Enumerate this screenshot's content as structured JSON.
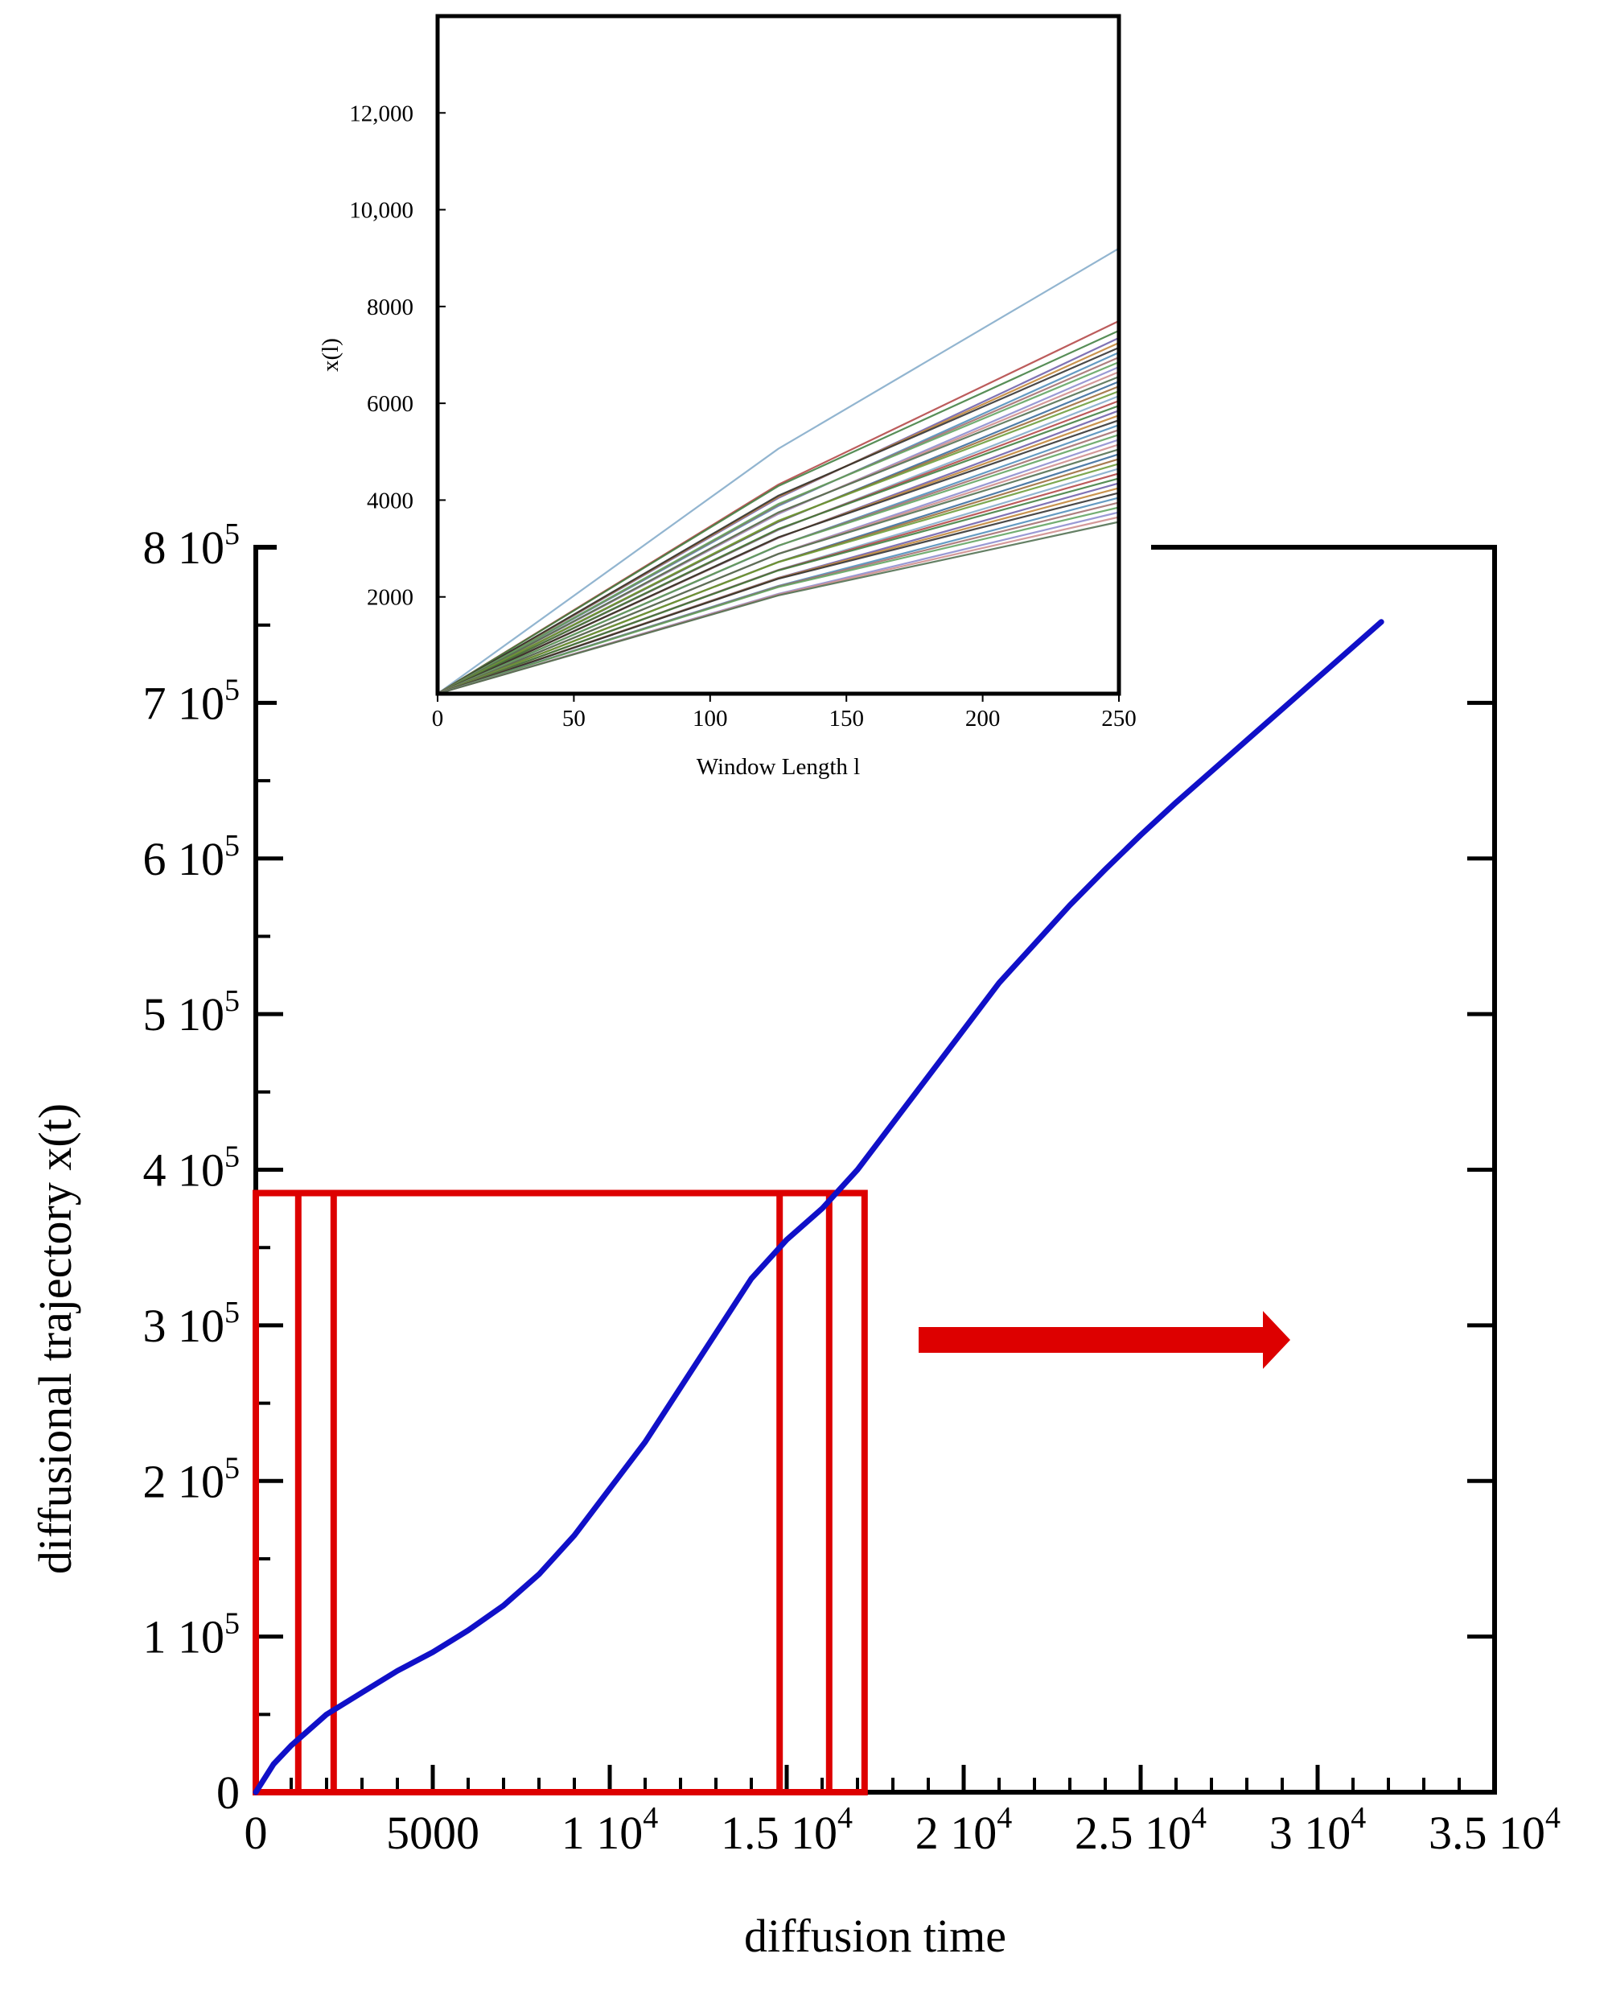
{
  "chart_data": [
    {
      "type": "line",
      "xlabel": "diffusion time",
      "ylabel": "diffusional trajectory x(t)",
      "xlim": [
        0,
        35000
      ],
      "ylim": [
        0,
        800000
      ],
      "grid": false,
      "x_ticks": [
        {
          "value": 0,
          "base": "0",
          "exp": ""
        },
        {
          "value": 5000,
          "base": "5000",
          "exp": ""
        },
        {
          "value": 10000,
          "base": "1 10",
          "exp": "4"
        },
        {
          "value": 15000,
          "base": "1.5 10",
          "exp": "4"
        },
        {
          "value": 20000,
          "base": "2 10",
          "exp": "4"
        },
        {
          "value": 25000,
          "base": "2.5 10",
          "exp": "4"
        },
        {
          "value": 30000,
          "base": "3 10",
          "exp": "4"
        },
        {
          "value": 35000,
          "base": "3.5 10",
          "exp": "4"
        }
      ],
      "y_ticks": [
        {
          "value": 0,
          "base": "0",
          "exp": ""
        },
        {
          "value": 100000,
          "base": "1 10",
          "exp": "5"
        },
        {
          "value": 200000,
          "base": "2 10",
          "exp": "5"
        },
        {
          "value": 300000,
          "base": "3 10",
          "exp": "5"
        },
        {
          "value": 400000,
          "base": "4 10",
          "exp": "5"
        },
        {
          "value": 500000,
          "base": "5 10",
          "exp": "5"
        },
        {
          "value": 600000,
          "base": "6 10",
          "exp": "5"
        },
        {
          "value": 700000,
          "base": "7 10",
          "exp": "5"
        },
        {
          "value": 800000,
          "base": "8 10",
          "exp": "5"
        }
      ],
      "series": [
        {
          "color": "#1010c8",
          "x": [
            0,
            500,
            1000,
            2000,
            3000,
            4000,
            5000,
            6000,
            7000,
            8000,
            9000,
            10000,
            11000,
            12000,
            13000,
            14000,
            15000,
            16000,
            17000,
            18000,
            19000,
            20000,
            21000,
            22000,
            23000,
            24000,
            25000,
            26000,
            27000,
            28000,
            29000,
            30000,
            31000,
            31800
          ],
          "y": [
            0,
            18000,
            30000,
            50000,
            64000,
            78000,
            90000,
            104000,
            120000,
            140000,
            165000,
            195000,
            225000,
            260000,
            295000,
            330000,
            355000,
            375000,
            400000,
            430000,
            460000,
            490000,
            520000,
            545000,
            570000,
            593000,
            615000,
            636000,
            656000,
            676000,
            696000,
            716000,
            736000,
            752000
          ]
        }
      ],
      "windows": [
        {
          "x0": 0,
          "x1": 16200,
          "y0": 0,
          "y1": 385000
        },
        {
          "x0": 1200,
          "x1": 17200,
          "y0": 0,
          "y1": 385000
        },
        {
          "x0": 2200,
          "x1": 14800,
          "y0": 0,
          "y1": 385000
        }
      ],
      "annotation_arrow": {
        "color": "#dd0000",
        "direction": "right"
      }
    },
    {
      "type": "line",
      "xlabel": "Window Length l",
      "ylabel": "x(l)",
      "xlim": [
        0,
        250
      ],
      "ylim": [
        0,
        14000
      ],
      "grid": false,
      "x_ticks": [
        0,
        50,
        100,
        150,
        200,
        250
      ],
      "y_tick_values": [
        2000,
        4000,
        6000,
        8000,
        10000,
        12000
      ],
      "y_tick_labels": [
        "2000",
        "4000",
        "6000",
        "8000",
        "10,000",
        "12,000"
      ],
      "series_endpoints_at_250": [
        9200,
        7700,
        7500,
        7350,
        7250,
        7150,
        7050,
        6950,
        6850,
        6750,
        6650,
        6550,
        6450,
        6350,
        6250,
        6150,
        6050,
        5950,
        5850,
        5750,
        5650,
        5550,
        5450,
        5350,
        5250,
        5150,
        5050,
        4950,
        4850,
        4750,
        4650,
        4550,
        4450,
        4350,
        4250,
        4150,
        4050,
        3950,
        3850,
        3750,
        3650,
        3550
      ],
      "series_colors": [
        "#7fa8c8",
        "#b04040",
        "#3a7a3a",
        "#6a5aa8",
        "#c08030",
        "#2a2a2a",
        "#4a8ab8",
        "#a06a6a",
        "#5aa05a",
        "#8888cc",
        "#cc8888",
        "#4a6a4a",
        "#336699",
        "#996633",
        "#669933"
      ]
    }
  ]
}
